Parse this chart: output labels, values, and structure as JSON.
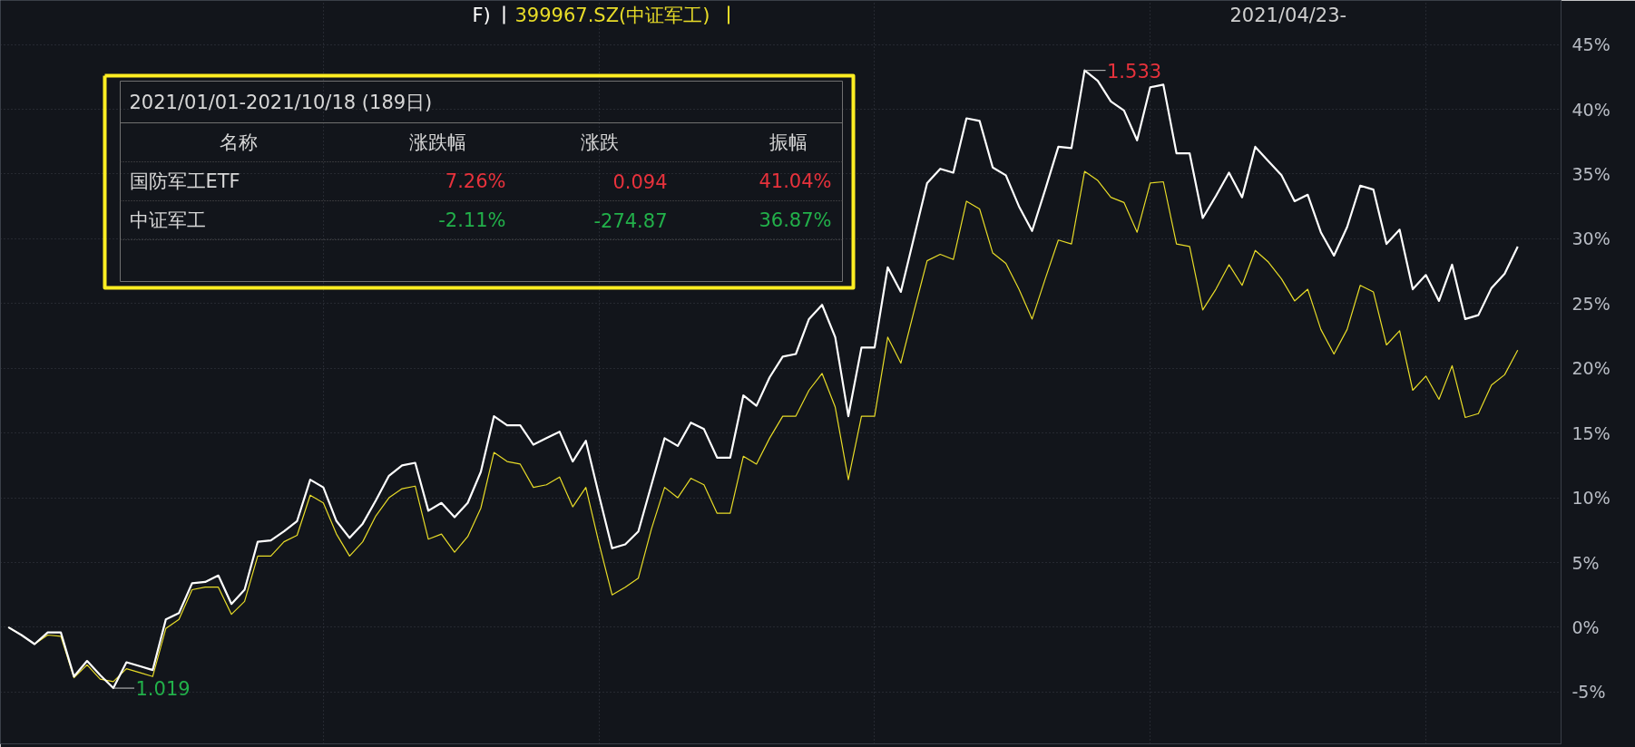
{
  "chart_data": {
    "type": "line",
    "categories": [
      null,
      null,
      null,
      null,
      null,
      null,
      null,
      null,
      null,
      null,
      null,
      null,
      null,
      null,
      null,
      null,
      null,
      null,
      null,
      null,
      null,
      null,
      null,
      null,
      null,
      null,
      null,
      null,
      null,
      null,
      null,
      null,
      null,
      null,
      null,
      null,
      null,
      null,
      null,
      null,
      null,
      null,
      null,
      null,
      null,
      null,
      null,
      null,
      null,
      null,
      null,
      null,
      null,
      null,
      null,
      null,
      null,
      null,
      null,
      null,
      null,
      null,
      null,
      null,
      null,
      null,
      null,
      null,
      null,
      null,
      null,
      null,
      null,
      null,
      null,
      null,
      null,
      null,
      null,
      null,
      null,
      null,
      null,
      null,
      null,
      null,
      null,
      null,
      null,
      null,
      null,
      null,
      null,
      null,
      null,
      null,
      null,
      null,
      null,
      null,
      null,
      null,
      null,
      null,
      null,
      null,
      null,
      null,
      null,
      null,
      null,
      null,
      null,
      null,
      null,
      null
    ],
    "series": [
      {
        "name": "F)",
        "color": "#ffffff",
        "values": [
          0.0,
          -0.6,
          -1.3,
          -0.4,
          -0.4,
          -3.8,
          -2.6,
          -3.7,
          -4.7,
          -2.7,
          -3.0,
          -3.3,
          0.6,
          1.1,
          3.4,
          3.5,
          4.0,
          1.8,
          2.9,
          6.6,
          6.7,
          7.4,
          8.2,
          11.4,
          10.8,
          8.2,
          6.9,
          8.0,
          9.8,
          11.7,
          12.5,
          12.7,
          9.0,
          9.6,
          8.5,
          9.6,
          12.0,
          16.3,
          15.6,
          15.6,
          14.1,
          14.6,
          15.1,
          12.8,
          14.4,
          10.2,
          6.1,
          6.4,
          7.4,
          11.0,
          14.6,
          14.0,
          15.8,
          15.3,
          13.1,
          13.1,
          17.9,
          17.1,
          19.3,
          20.9,
          21.1,
          23.8,
          24.9,
          22.4,
          16.3,
          21.6,
          21.6,
          27.8,
          25.9,
          30.1,
          34.3,
          35.4,
          35.1,
          39.3,
          39.1,
          35.5,
          34.9,
          32.5,
          30.6,
          33.8,
          37.1,
          37.0,
          43.0,
          42.2,
          40.6,
          39.9,
          37.6,
          41.7,
          41.9,
          36.6,
          36.6,
          31.6,
          33.3,
          35.1,
          33.2,
          37.1,
          36.0,
          34.9,
          32.9,
          33.4,
          30.5,
          28.7,
          30.9,
          34.1,
          33.8,
          29.6,
          30.7,
          26.1,
          27.2,
          25.2,
          28.0,
          23.8,
          24.1,
          26.2,
          27.3,
          29.4
        ]
      },
      {
        "name": "399967.SZ(中证军工)",
        "color": "#e8dc28",
        "values": [
          0.0,
          -0.6,
          -1.3,
          -0.6,
          -0.7,
          -3.9,
          -2.9,
          -4.0,
          -4.2,
          -3.2,
          -3.5,
          -3.8,
          -0.1,
          0.6,
          2.9,
          3.1,
          3.1,
          1.0,
          2.0,
          5.5,
          5.5,
          6.6,
          7.1,
          10.2,
          9.6,
          7.2,
          5.5,
          6.6,
          8.6,
          10.0,
          10.7,
          10.9,
          6.8,
          7.2,
          5.8,
          7.0,
          9.2,
          13.5,
          12.8,
          12.6,
          10.8,
          11.0,
          11.6,
          9.3,
          10.8,
          6.5,
          2.5,
          3.1,
          3.8,
          7.6,
          10.8,
          10.0,
          11.5,
          11.0,
          8.8,
          8.8,
          13.2,
          12.6,
          14.6,
          16.3,
          16.3,
          18.3,
          19.6,
          17.0,
          11.4,
          16.3,
          16.3,
          22.4,
          20.4,
          24.4,
          28.3,
          28.8,
          28.4,
          32.9,
          32.3,
          28.9,
          28.1,
          26.1,
          23.8,
          26.9,
          29.9,
          29.6,
          35.2,
          34.5,
          33.2,
          32.8,
          30.5,
          34.3,
          34.4,
          29.6,
          29.4,
          24.5,
          26.1,
          28.0,
          26.4,
          29.1,
          28.2,
          26.9,
          25.2,
          26.1,
          23.0,
          21.1,
          23.0,
          26.4,
          25.9,
          21.8,
          22.9,
          18.3,
          19.4,
          17.6,
          20.2,
          16.2,
          16.5,
          18.7,
          19.5,
          21.4
        ]
      }
    ],
    "ylim": [
      -9,
      48.4
    ],
    "yticks": [
      {
        "value": -5,
        "label": "-5%"
      },
      {
        "value": 0,
        "label": "0%"
      },
      {
        "value": 5,
        "label": "5%"
      },
      {
        "value": 10,
        "label": "10%"
      },
      {
        "value": 15,
        "label": "15%"
      },
      {
        "value": 20,
        "label": "20%"
      },
      {
        "value": 25,
        "label": "25%"
      },
      {
        "value": 30,
        "label": "30%"
      },
      {
        "value": 35,
        "label": "35%"
      },
      {
        "value": 40,
        "label": "40%"
      },
      {
        "value": 45,
        "label": "45%"
      }
    ],
    "tick_labels": "y",
    "grid": true,
    "legend": "top left",
    "line_style": "solid",
    "marker": "none",
    "annotations": [
      "2021/04/23-",
      "2021/01/01-2021/10/18 (189日)",
      "名称",
      "涨跌幅",
      "涨跌",
      "振幅",
      "国防军工ETF",
      "7.26%",
      "0.094",
      "41.04%",
      "中证军工",
      "-2.11%",
      "-274.87",
      "36.87%",
      "1.533",
      "1.019"
    ]
  }
}
